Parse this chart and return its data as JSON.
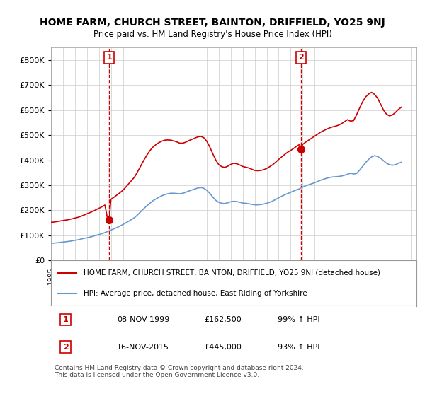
{
  "title": "HOME FARM, CHURCH STREET, BAINTON, DRIFFIELD, YO25 9NJ",
  "subtitle": "Price paid vs. HM Land Registry's House Price Index (HPI)",
  "ylim": [
    0,
    850000
  ],
  "yticks": [
    0,
    100000,
    200000,
    300000,
    400000,
    500000,
    600000,
    700000,
    800000
  ],
  "ytick_labels": [
    "£0",
    "£100K",
    "£200K",
    "£300K",
    "£400K",
    "£500K",
    "£600K",
    "£700K",
    "£800K"
  ],
  "xlim_start": 1995,
  "xlim_end": 2025.5,
  "background_color": "#ffffff",
  "plot_bg_color": "#ffffff",
  "grid_color": "#cccccc",
  "red_color": "#cc0000",
  "blue_color": "#6699cc",
  "sale1_x": 1999.86,
  "sale1_y": 162500,
  "sale2_x": 2015.88,
  "sale2_y": 445000,
  "vline1_x": 1999.86,
  "vline2_x": 2015.88,
  "legend_line1": "HOME FARM, CHURCH STREET, BAINTON, DRIFFIELD, YO25 9NJ (detached house)",
  "legend_line2": "HPI: Average price, detached house, East Riding of Yorkshire",
  "table_data": [
    [
      "1",
      "08-NOV-1999",
      "£162,500",
      "99% ↑ HPI"
    ],
    [
      "2",
      "16-NOV-2015",
      "£445,000",
      "93% ↑ HPI"
    ]
  ],
  "footnote": "Contains HM Land Registry data © Crown copyright and database right 2024.\nThis data is licensed under the Open Government Licence v3.0.",
  "hpi_years": [
    1995.0,
    1995.25,
    1995.5,
    1995.75,
    1996.0,
    1996.25,
    1996.5,
    1996.75,
    1997.0,
    1997.25,
    1997.5,
    1997.75,
    1998.0,
    1998.25,
    1998.5,
    1998.75,
    1999.0,
    1999.25,
    1999.5,
    1999.75,
    2000.0,
    2000.25,
    2000.5,
    2000.75,
    2001.0,
    2001.25,
    2001.5,
    2001.75,
    2002.0,
    2002.25,
    2002.5,
    2002.75,
    2003.0,
    2003.25,
    2003.5,
    2003.75,
    2004.0,
    2004.25,
    2004.5,
    2004.75,
    2005.0,
    2005.25,
    2005.5,
    2005.75,
    2006.0,
    2006.25,
    2006.5,
    2006.75,
    2007.0,
    2007.25,
    2007.5,
    2007.75,
    2008.0,
    2008.25,
    2008.5,
    2008.75,
    2009.0,
    2009.25,
    2009.5,
    2009.75,
    2010.0,
    2010.25,
    2010.5,
    2010.75,
    2011.0,
    2011.25,
    2011.5,
    2011.75,
    2012.0,
    2012.25,
    2012.5,
    2012.75,
    2013.0,
    2013.25,
    2013.5,
    2013.75,
    2014.0,
    2014.25,
    2014.5,
    2014.75,
    2015.0,
    2015.25,
    2015.5,
    2015.75,
    2016.0,
    2016.25,
    2016.5,
    2016.75,
    2017.0,
    2017.25,
    2017.5,
    2017.75,
    2018.0,
    2018.25,
    2018.5,
    2018.75,
    2019.0,
    2019.25,
    2019.5,
    2019.75,
    2020.0,
    2020.25,
    2020.5,
    2020.75,
    2021.0,
    2021.25,
    2021.5,
    2021.75,
    2022.0,
    2022.25,
    2022.5,
    2022.75,
    2023.0,
    2023.25,
    2023.5,
    2023.75,
    2024.0,
    2024.25
  ],
  "hpi_values": [
    68000,
    69000,
    70000,
    71500,
    73000,
    74500,
    76000,
    78000,
    80000,
    82000,
    85000,
    88000,
    90000,
    93000,
    96000,
    100000,
    103000,
    107000,
    111000,
    116000,
    121000,
    126000,
    131000,
    137000,
    143000,
    150000,
    157000,
    164000,
    172000,
    183000,
    195000,
    207000,
    218000,
    228000,
    238000,
    245000,
    252000,
    258000,
    263000,
    266000,
    268000,
    268000,
    267000,
    266000,
    268000,
    272000,
    277000,
    281000,
    285000,
    289000,
    291000,
    288000,
    280000,
    268000,
    253000,
    240000,
    232000,
    228000,
    227000,
    230000,
    234000,
    236000,
    235000,
    232000,
    229000,
    228000,
    226000,
    224000,
    222000,
    222000,
    223000,
    225000,
    228000,
    232000,
    237000,
    243000,
    250000,
    256000,
    262000,
    267000,
    272000,
    277000,
    282000,
    286000,
    292000,
    298000,
    302000,
    306000,
    310000,
    315000,
    320000,
    324000,
    328000,
    331000,
    333000,
    334000,
    335000,
    337000,
    340000,
    344000,
    348000,
    345000,
    347000,
    360000,
    375000,
    390000,
    403000,
    413000,
    418000,
    415000,
    408000,
    398000,
    388000,
    382000,
    380000,
    382000,
    388000,
    392000
  ],
  "red_line_years": [
    1995.0,
    1995.25,
    1995.5,
    1995.75,
    1996.0,
    1996.25,
    1996.5,
    1996.75,
    1997.0,
    1997.25,
    1997.5,
    1997.75,
    1998.0,
    1998.25,
    1998.5,
    1998.75,
    1999.0,
    1999.25,
    1999.5,
    1999.75,
    1999.86,
    2000.0,
    2000.25,
    2000.5,
    2000.75,
    2001.0,
    2001.25,
    2001.5,
    2001.75,
    2002.0,
    2002.25,
    2002.5,
    2002.75,
    2003.0,
    2003.25,
    2003.5,
    2003.75,
    2004.0,
    2004.25,
    2004.5,
    2004.75,
    2005.0,
    2005.25,
    2005.5,
    2005.75,
    2006.0,
    2006.25,
    2006.5,
    2006.75,
    2007.0,
    2007.25,
    2007.5,
    2007.75,
    2008.0,
    2008.25,
    2008.5,
    2008.75,
    2009.0,
    2009.25,
    2009.5,
    2009.75,
    2010.0,
    2010.25,
    2010.5,
    2010.75,
    2011.0,
    2011.25,
    2011.5,
    2011.75,
    2012.0,
    2012.25,
    2012.5,
    2012.75,
    2013.0,
    2013.25,
    2013.5,
    2013.75,
    2014.0,
    2014.25,
    2014.5,
    2014.75,
    2015.0,
    2015.25,
    2015.5,
    2015.75,
    2015.88,
    2016.0,
    2016.25,
    2016.5,
    2016.75,
    2017.0,
    2017.25,
    2017.5,
    2017.75,
    2018.0,
    2018.25,
    2018.5,
    2018.75,
    2019.0,
    2019.25,
    2019.5,
    2019.75,
    2020.0,
    2020.25,
    2020.5,
    2020.75,
    2021.0,
    2021.25,
    2021.5,
    2021.75,
    2022.0,
    2022.25,
    2022.5,
    2022.75,
    2023.0,
    2023.25,
    2023.5,
    2023.75,
    2024.0,
    2024.25
  ],
  "red_line_values": [
    152000,
    153000,
    155000,
    157000,
    159000,
    161000,
    163000,
    166000,
    169000,
    172000,
    176000,
    181000,
    186000,
    191000,
    196000,
    202000,
    208000,
    214000,
    221000,
    159000,
    162500,
    244000,
    252000,
    261000,
    270000,
    280000,
    293000,
    307000,
    320000,
    335000,
    356000,
    378000,
    400000,
    420000,
    438000,
    452000,
    462000,
    470000,
    476000,
    480000,
    481000,
    480000,
    477000,
    473000,
    468000,
    468000,
    472000,
    478000,
    483000,
    488000,
    493000,
    495000,
    490000,
    476000,
    453000,
    426000,
    401000,
    382000,
    374000,
    371000,
    376000,
    383000,
    388000,
    386000,
    381000,
    375000,
    372000,
    369000,
    364000,
    359000,
    358000,
    359000,
    362000,
    367000,
    374000,
    382000,
    392000,
    403000,
    413000,
    423000,
    432000,
    439000,
    447000,
    456000,
    463000,
    445000,
    463000,
    472000,
    480000,
    488000,
    496000,
    504000,
    512000,
    518000,
    524000,
    529000,
    533000,
    536000,
    540000,
    546000,
    554000,
    562000,
    556000,
    558000,
    581000,
    608000,
    633000,
    652000,
    664000,
    671000,
    663000,
    648000,
    625000,
    600000,
    584000,
    577000,
    581000,
    591000,
    603000,
    612000
  ]
}
